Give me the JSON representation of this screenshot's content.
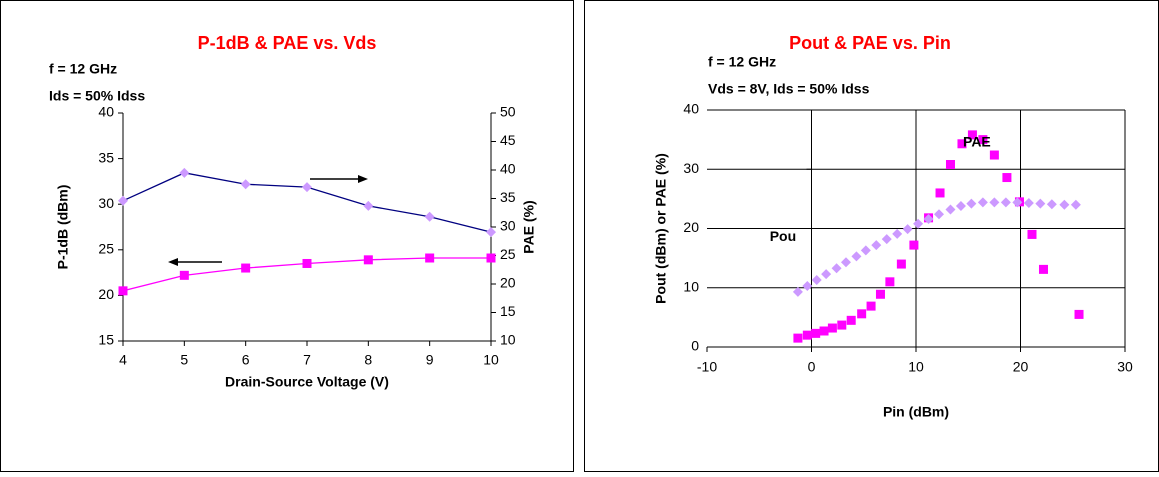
{
  "chart_data": [
    {
      "type": "line",
      "title": "P-1dB & PAE vs. Vds",
      "annotations": [
        "f = 12 GHz",
        "Ids = 50% Idss"
      ],
      "x_label": "Drain-Source Voltage (V)",
      "y_label": "P-1dB (dBm)",
      "y2_label": "PAE (%)",
      "x": [
        4,
        5,
        6,
        7,
        8,
        9,
        10
      ],
      "series": [
        {
          "name": "P-1dB",
          "color": "#ff00ff",
          "line_color": "#ff00ff",
          "marker": "square",
          "values": [
            20.5,
            22.2,
            23.0,
            23.5,
            23.9,
            24.1,
            24.1
          ]
        },
        {
          "name": "PAE",
          "color": "#cc99ff",
          "line_color": "#000080",
          "marker": "diamond",
          "axis": "y2",
          "values": [
            34.6,
            39.5,
            37.5,
            37.0,
            33.7,
            31.8,
            29.1
          ]
        }
      ],
      "xlim": [
        4,
        10
      ],
      "xticks": [
        4,
        5,
        6,
        7,
        8,
        9,
        10
      ],
      "ylim": [
        15,
        40
      ],
      "yticks": [
        15,
        20,
        25,
        30,
        35,
        40
      ],
      "y2lim": [
        10,
        50
      ],
      "y2ticks": [
        10,
        15,
        20,
        25,
        30,
        35,
        40,
        45,
        50
      ],
      "grid": false
    },
    {
      "type": "scatter",
      "title": "Pout & PAE vs. Pin",
      "annotations": [
        "f = 12 GHz",
        "Vds = 8V, Ids = 50% Idss"
      ],
      "x_label": "Pin (dBm)",
      "y_label": "Pout (dBm) or PAE (%)",
      "series": [
        {
          "name": "PAE",
          "color": "#ff00ff",
          "marker": "square",
          "label_at": [
            14.5,
            34.5
          ],
          "x": [
            -1.3,
            -0.4,
            0.4,
            1.2,
            2,
            2.9,
            3.8,
            4.8,
            5.7,
            6.6,
            7.5,
            8.6,
            9.8,
            11.2,
            12.3,
            13.3,
            14.4,
            15.4,
            16.4,
            17.5,
            18.7,
            19.9,
            21.1,
            22.2,
            25.6
          ],
          "values": [
            1.5,
            2,
            2.3,
            2.7,
            3.2,
            3.7,
            4.5,
            5.6,
            6.9,
            8.9,
            11,
            14,
            17.2,
            21.8,
            26,
            30.8,
            34.3,
            35.8,
            35,
            32.4,
            28.6,
            24.5,
            19,
            13.1,
            5.5
          ]
        },
        {
          "name": "Pou",
          "color": "#cc99ff",
          "marker": "diamond",
          "label_at": [
            -4,
            18.5
          ],
          "x": [
            -1.3,
            -0.4,
            0.5,
            1.4,
            2.4,
            3.3,
            4.3,
            5.2,
            6.2,
            7.2,
            8.2,
            9.2,
            10.2,
            11.2,
            12.2,
            13.3,
            14.3,
            15.3,
            16.4,
            17.5,
            18.6,
            19.7,
            20.8,
            21.9,
            23,
            24.2,
            25.3
          ],
          "values": [
            9.3,
            10.3,
            11.3,
            12.3,
            13.3,
            14.3,
            15.3,
            16.3,
            17.2,
            18.2,
            19.1,
            19.9,
            20.8,
            21.6,
            22.4,
            23.2,
            23.8,
            24.2,
            24.4,
            24.4,
            24.4,
            24.4,
            24.3,
            24.2,
            24.1,
            24,
            24
          ]
        }
      ],
      "xlim": [
        -10,
        30
      ],
      "xticks": [
        -10,
        0,
        10,
        20,
        30
      ],
      "ylim": [
        0,
        40
      ],
      "yticks": [
        0,
        10,
        20,
        30,
        40
      ],
      "grid": true
    }
  ]
}
